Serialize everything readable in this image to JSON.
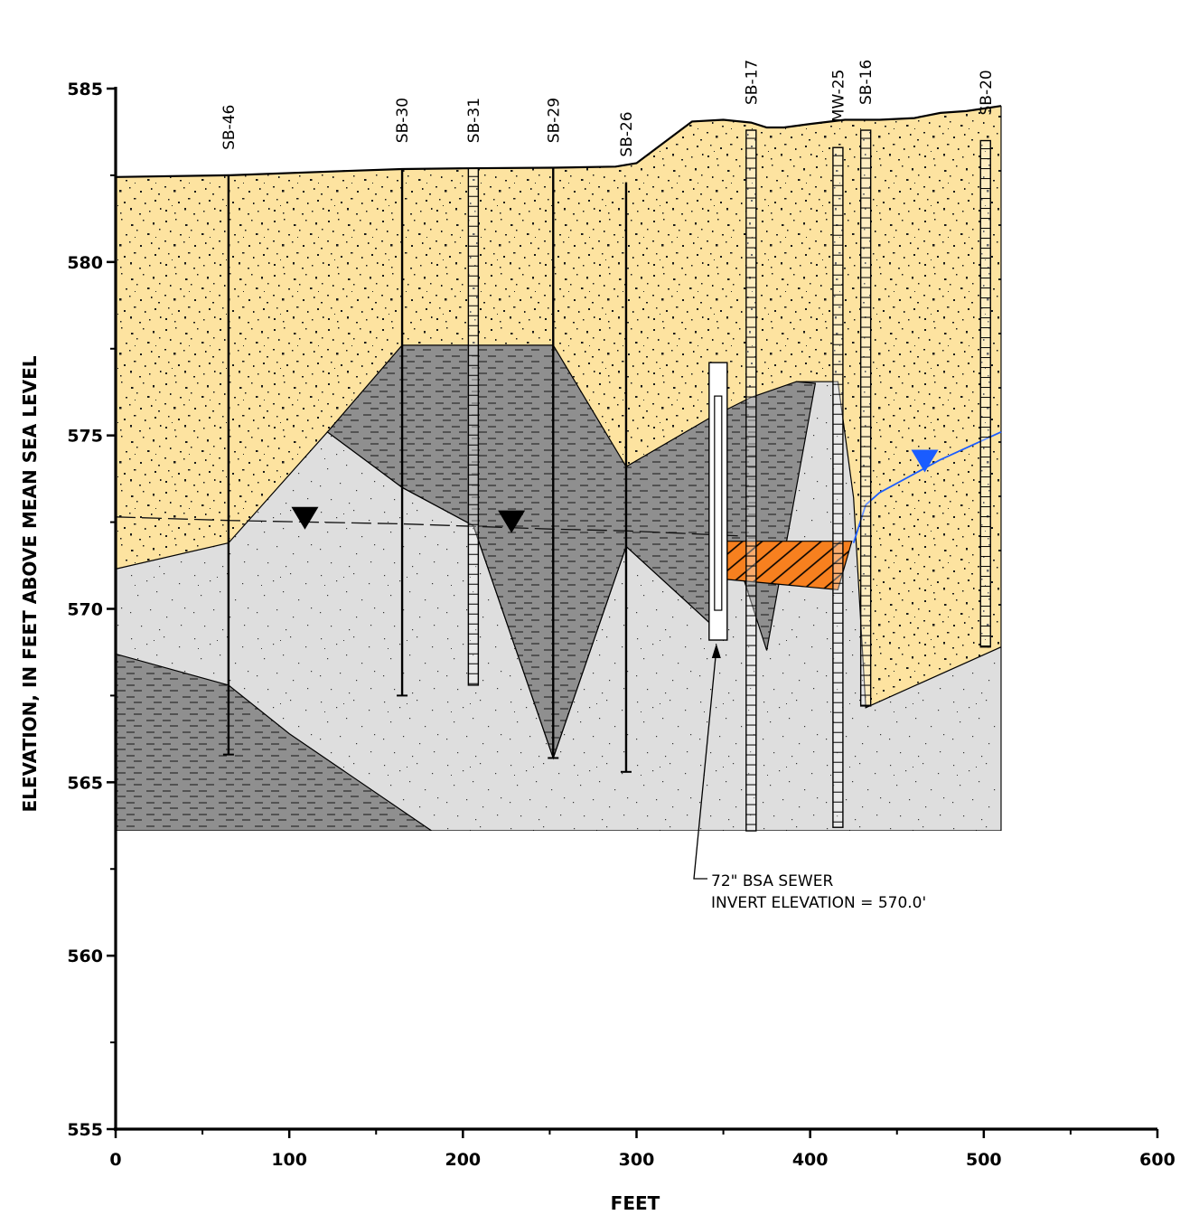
{
  "axes": {
    "x_title": "FEET",
    "y_title": "ELEVATION, IN FEET ABOVE MEAN SEA LEVEL",
    "x_ticks": [
      "0",
      "100",
      "200",
      "300",
      "400",
      "500",
      "600"
    ],
    "y_ticks": [
      "585",
      "580",
      "575",
      "570",
      "565",
      "560",
      "555"
    ],
    "x_range": [
      0,
      600
    ],
    "y_range": [
      555,
      585
    ]
  },
  "borings": [
    {
      "label": "SB-46",
      "x": 65,
      "top": 582.5,
      "bottom": 565.8,
      "style": "line"
    },
    {
      "label": "SB-30",
      "x": 165,
      "top": 582.7,
      "bottom": 567.5,
      "style": "line"
    },
    {
      "label": "SB-31",
      "x": 206,
      "top": 582.7,
      "bottom": 567.8,
      "style": "column"
    },
    {
      "label": "SB-29",
      "x": 252,
      "top": 582.7,
      "bottom": 565.7,
      "style": "line"
    },
    {
      "label": "SB-26",
      "x": 294,
      "top": 582.3,
      "bottom": 565.3,
      "style": "line"
    },
    {
      "label": "SB-17",
      "x": 366,
      "top": 583.8,
      "bottom": 563.6,
      "style": "column"
    },
    {
      "label": "MW-25",
      "x": 416,
      "top": 583.3,
      "bottom": 563.7,
      "style": "column"
    },
    {
      "label": "SB-16",
      "x": 432,
      "top": 583.8,
      "bottom": 567.2,
      "style": "column"
    },
    {
      "label": "SB-20",
      "x": 501,
      "top": 583.5,
      "bottom": 568.9,
      "style": "column"
    }
  ],
  "sewer": {
    "label_line1": "72\" BSA SEWER",
    "label_line2": "INVERT ELEVATION = 570.0'",
    "x": 347,
    "bottom": 569.1,
    "top": 577.1
  },
  "colors": {
    "sand": "#fde3a0",
    "clay": "#8f8f8f",
    "silty_sand": "#dedede",
    "contaminant": "#f7801f",
    "water_table_blue": "#1a5cff",
    "ink": "#000000"
  },
  "surface": [
    [
      0,
      582.45
    ],
    [
      65,
      582.5
    ],
    [
      130,
      582.62
    ],
    [
      165,
      582.68
    ],
    [
      200,
      582.7
    ],
    [
      252,
      582.72
    ],
    [
      288,
      582.75
    ],
    [
      300,
      582.85
    ],
    [
      332,
      584.05
    ],
    [
      350,
      584.1
    ],
    [
      366,
      584.02
    ],
    [
      375,
      583.88
    ],
    [
      385,
      583.88
    ],
    [
      400,
      583.98
    ],
    [
      420,
      584.1
    ],
    [
      440,
      584.1
    ],
    [
      460,
      584.15
    ],
    [
      475,
      584.3
    ],
    [
      490,
      584.35
    ],
    [
      510,
      584.5
    ]
  ],
  "section_bottom": 563.6,
  "water_table_black": [
    [
      0,
      572.65
    ],
    [
      65,
      572.55
    ],
    [
      165,
      572.45
    ],
    [
      252,
      572.3
    ],
    [
      294,
      572.25
    ],
    [
      360,
      572.1
    ]
  ],
  "water_table_blue_line": [
    [
      432,
      573.0
    ],
    [
      440,
      573.35
    ],
    [
      475,
      574.3
    ],
    [
      510,
      575.1
    ]
  ],
  "water_marks": [
    {
      "x": 109,
      "y": 572.6,
      "color": "black"
    },
    {
      "x": 228,
      "y": 572.5,
      "color": "black"
    },
    {
      "x": 466,
      "y": 574.25,
      "color": "blue"
    }
  ]
}
